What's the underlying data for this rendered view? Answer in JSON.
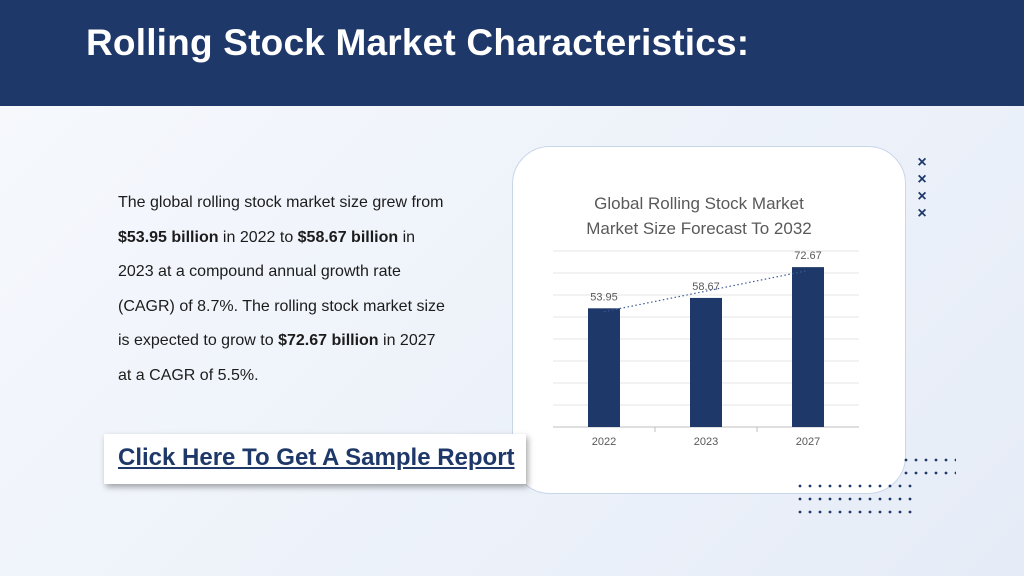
{
  "header": {
    "title": "Rolling Stock Market Characteristics:"
  },
  "body": {
    "p1": "The global rolling stock market size grew from ",
    "b1": "$53.95 billion",
    "p2": " in 2022 to ",
    "b2": "$58.67 billion",
    "p3": " in 2023 at a compound annual growth rate (CAGR) of 8.7%. The rolling stock market size is expected to grow to ",
    "b3": "$72.67 billion",
    "p4": " in 2027 at a CAGR of 5.5%."
  },
  "cta": {
    "label": "Click Here To Get A Sample Report"
  },
  "decor": {
    "x_mark": "×"
  },
  "colors": {
    "header_bg": "#1e3869",
    "bar": "#1e3869",
    "accent": "#1e3869"
  },
  "chart_data": {
    "type": "bar",
    "title_line1": "Global Rolling Stock Market",
    "title_line2": "Market Size Forecast To 2032",
    "categories": [
      "2022",
      "2023",
      "2027"
    ],
    "values": [
      53.95,
      58.67,
      72.67
    ],
    "data_labels": [
      "53.95",
      "58.67",
      "72.67"
    ],
    "ylim": [
      0,
      80
    ],
    "grid": true,
    "trendline": "dotted-linear"
  }
}
